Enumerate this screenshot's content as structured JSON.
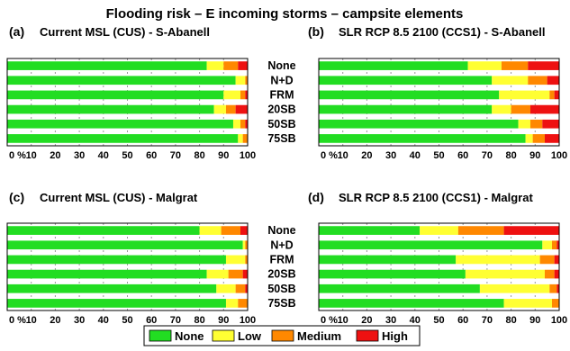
{
  "figure": {
    "title": "Flooding risk – E incoming storms – campsite elements"
  },
  "colors": {
    "None": "#22dd22",
    "Low": "#ffff33",
    "Medium": "#ff8800",
    "High": "#ee1111",
    "grid": "#999999",
    "frame": "#000000"
  },
  "legend": {
    "items": [
      "None",
      "Low",
      "Medium",
      "High"
    ],
    "placement": "bottom-center"
  },
  "chart_data": [
    {
      "type": "bar",
      "orientation": "horizontal",
      "stacked": true,
      "panel_label": "(a)",
      "title": "Current MSL (CUS) - S-Abanell",
      "categories": [
        "None",
        "N+D",
        "FRM",
        "20SB",
        "50SB",
        "75SB"
      ],
      "xlim": [
        0,
        100
      ],
      "xticks": [
        "0 %",
        "10",
        "20",
        "30",
        "40",
        "50",
        "60",
        "70",
        "80",
        "90",
        "100"
      ],
      "grid": true,
      "series": [
        {
          "name": "None",
          "values": [
            83,
            95,
            90,
            86,
            94,
            96
          ]
        },
        {
          "name": "Low",
          "values": [
            7,
            4,
            7,
            5,
            3,
            2
          ]
        },
        {
          "name": "Medium",
          "values": [
            6,
            1,
            2,
            4,
            2,
            2
          ]
        },
        {
          "name": "High",
          "values": [
            4,
            0,
            1,
            5,
            1,
            0
          ]
        }
      ]
    },
    {
      "type": "bar",
      "orientation": "horizontal",
      "stacked": true,
      "panel_label": "(b)",
      "title": "SLR RCP 8.5 2100 (CCS1) - S-Abanell",
      "categories": [
        "None",
        "N+D",
        "FRM",
        "20SB",
        "50SB",
        "75SB"
      ],
      "xlim": [
        0,
        100
      ],
      "xticks": [
        "0 %",
        "10",
        "20",
        "30",
        "40",
        "50",
        "60",
        "70",
        "80",
        "90",
        "100"
      ],
      "grid": true,
      "series": [
        {
          "name": "None",
          "values": [
            62,
            72,
            75,
            72,
            83,
            86
          ]
        },
        {
          "name": "Low",
          "values": [
            14,
            15,
            21,
            8,
            5,
            3
          ]
        },
        {
          "name": "Medium",
          "values": [
            11,
            8,
            2,
            8,
            5,
            5
          ]
        },
        {
          "name": "High",
          "values": [
            13,
            5,
            2,
            12,
            7,
            6
          ]
        }
      ]
    },
    {
      "type": "bar",
      "orientation": "horizontal",
      "stacked": true,
      "panel_label": "(c)",
      "title": "Current MSL (CUS) - Malgrat",
      "categories": [
        "None",
        "N+D",
        "FRM",
        "20SB",
        "50SB",
        "75SB"
      ],
      "xlim": [
        0,
        100
      ],
      "xticks": [
        "0 %",
        "10",
        "20",
        "30",
        "40",
        "50",
        "60",
        "70",
        "80",
        "90",
        "100"
      ],
      "grid": true,
      "series": [
        {
          "name": "None",
          "values": [
            80,
            98,
            91,
            83,
            87,
            91
          ]
        },
        {
          "name": "Low",
          "values": [
            9,
            1,
            8,
            9,
            8,
            5
          ]
        },
        {
          "name": "Medium",
          "values": [
            8,
            1,
            1,
            6,
            4,
            4
          ]
        },
        {
          "name": "High",
          "values": [
            3,
            0,
            0,
            2,
            1,
            0
          ]
        }
      ]
    },
    {
      "type": "bar",
      "orientation": "horizontal",
      "stacked": true,
      "panel_label": "(d)",
      "title": "SLR RCP 8.5 2100 (CCS1) - Malgrat",
      "categories": [
        "None",
        "N+D",
        "FRM",
        "20SB",
        "50SB",
        "75SB"
      ],
      "xlim": [
        0,
        100
      ],
      "xticks": [
        "0 %",
        "10",
        "20",
        "30",
        "40",
        "50",
        "60",
        "70",
        "80",
        "90",
        "100"
      ],
      "grid": true,
      "series": [
        {
          "name": "None",
          "values": [
            42,
            93,
            57,
            61,
            67,
            77
          ]
        },
        {
          "name": "Low",
          "values": [
            16,
            4,
            35,
            33,
            29,
            20
          ]
        },
        {
          "name": "Medium",
          "values": [
            19,
            2,
            6,
            4,
            3,
            3
          ]
        },
        {
          "name": "High",
          "values": [
            23,
            1,
            2,
            2,
            1,
            0
          ]
        }
      ]
    }
  ]
}
